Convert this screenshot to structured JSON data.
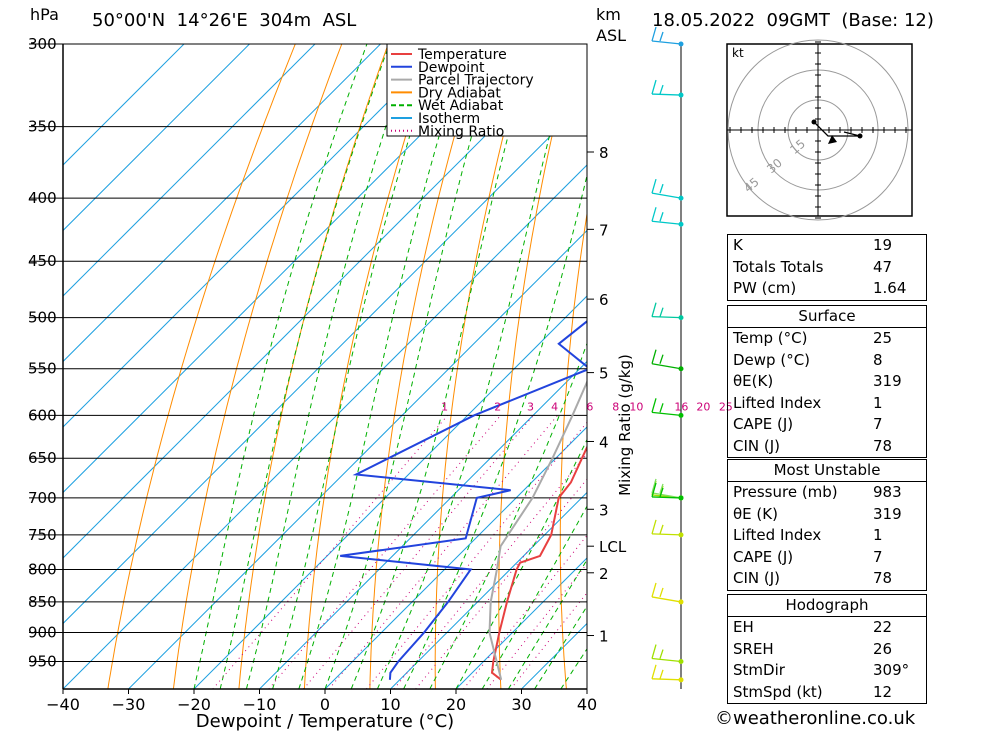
{
  "header": {
    "hpa_label": "hPa",
    "location": "50°00'N  14°26'E  304m  ASL",
    "km_label": "km",
    "asl_label": "ASL",
    "datetime": "18.05.2022  09GMT  (Base: 12)"
  },
  "chart_data": {
    "type": "line",
    "subtype": "skew-t log-p",
    "xlabel": "Dewpoint / Temperature (°C)",
    "ylabel": "hPa",
    "xlim": [
      -40,
      40
    ],
    "ylim": [
      300,
      1000
    ],
    "x_ticks": [
      "−40",
      "−30",
      "−20",
      "−10",
      "0",
      "10",
      "20",
      "30",
      "40"
    ],
    "pressure_ticks": [
      300,
      350,
      400,
      450,
      500,
      550,
      600,
      650,
      700,
      750,
      800,
      850,
      900,
      950
    ],
    "height_ticks": [
      {
        "label": "8",
        "p": 367
      },
      {
        "label": "7",
        "p": 424
      },
      {
        "label": "6",
        "p": 483
      },
      {
        "label": "5",
        "p": 554
      },
      {
        "label": "4",
        "p": 630
      },
      {
        "label": "3",
        "p": 715
      },
      {
        "label": "LCL",
        "p": 766
      },
      {
        "label": "2",
        "p": 805
      },
      {
        "label": "1",
        "p": 905
      }
    ],
    "mixing_ratio_axis_label": "Mixing Ratio (g/kg)",
    "mixing_ratio_labels": [
      "1",
      "2",
      "3",
      "4",
      "6",
      "8",
      "10",
      "16",
      "20",
      "25"
    ],
    "legend": {
      "position": "top-right",
      "entries": [
        {
          "label": "Temperature",
          "color": "#e84040",
          "style": "solid"
        },
        {
          "label": "Dewpoint",
          "color": "#2244dd",
          "style": "solid"
        },
        {
          "label": "Parcel Trajectory",
          "color": "#aaaaaa",
          "style": "solid"
        },
        {
          "label": "Dry Adiabat",
          "color": "#ff8c00",
          "style": "solid"
        },
        {
          "label": "Wet Adiabat",
          "color": "#00b000",
          "style": "dashed"
        },
        {
          "label": "Isotherm",
          "color": "#1ea0e0",
          "style": "solid"
        },
        {
          "label": "Mixing Ratio",
          "color": "#cc0077",
          "style": "dotted"
        }
      ]
    },
    "series": [
      {
        "name": "Temperature",
        "points": [
          {
            "p": 983,
            "t": 25.5
          },
          {
            "p": 970,
            "t": 23
          },
          {
            "p": 950,
            "t": 21.5
          },
          {
            "p": 900,
            "t": 18
          },
          {
            "p": 850,
            "t": 14.5
          },
          {
            "p": 800,
            "t": 11
          },
          {
            "p": 790,
            "t": 10.5
          },
          {
            "p": 780,
            "t": 12.5
          },
          {
            "p": 750,
            "t": 11
          },
          {
            "p": 700,
            "t": 6.5
          },
          {
            "p": 680,
            "t": 6
          },
          {
            "p": 650,
            "t": 4
          },
          {
            "p": 600,
            "t": 0.5
          },
          {
            "p": 550,
            "t": -3.5
          },
          {
            "p": 500,
            "t": -8
          },
          {
            "p": 450,
            "t": -14
          },
          {
            "p": 400,
            "t": -21
          },
          {
            "p": 375,
            "t": -25
          },
          {
            "p": 350,
            "t": -29
          },
          {
            "p": 300,
            "t": -37
          }
        ]
      },
      {
        "name": "Dewpoint",
        "points": [
          {
            "p": 983,
            "t": 8.5
          },
          {
            "p": 970,
            "t": 7.5
          },
          {
            "p": 950,
            "t": 7
          },
          {
            "p": 900,
            "t": 6.5
          },
          {
            "p": 850,
            "t": 5.5
          },
          {
            "p": 800,
            "t": 4
          },
          {
            "p": 780,
            "t": -18
          },
          {
            "p": 755,
            "t": -1.5
          },
          {
            "p": 700,
            "t": -6
          },
          {
            "p": 690,
            "t": -2
          },
          {
            "p": 670,
            "t": -28
          },
          {
            "p": 600,
            "t": -19
          },
          {
            "p": 550,
            "t": -8.5
          },
          {
            "p": 525,
            "t": -17
          },
          {
            "p": 500,
            "t": -16
          },
          {
            "p": 450,
            "t": -23
          },
          {
            "p": 425,
            "t": -20
          },
          {
            "p": 400,
            "t": -24
          },
          {
            "p": 350,
            "t": -31
          },
          {
            "p": 300,
            "t": -43
          }
        ]
      },
      {
        "name": "Parcel Trajectory",
        "points": [
          {
            "p": 983,
            "t": 25.5
          },
          {
            "p": 900,
            "t": 16.5
          },
          {
            "p": 850,
            "t": 12
          },
          {
            "p": 800,
            "t": 8
          },
          {
            "p": 766,
            "t": 5
          },
          {
            "p": 700,
            "t": 2.5
          },
          {
            "p": 650,
            "t": -0.5
          },
          {
            "p": 600,
            "t": -4
          },
          {
            "p": 550,
            "t": -8
          },
          {
            "p": 500,
            "t": -13
          },
          {
            "p": 450,
            "t": -18.5
          },
          {
            "p": 400,
            "t": -25
          },
          {
            "p": 350,
            "t": -32.5
          },
          {
            "p": 300,
            "t": -41
          }
        ]
      }
    ],
    "wind_barbs": [
      {
        "p": 983,
        "color": "#e0e000"
      },
      {
        "p": 950,
        "color": "#a0e000"
      },
      {
        "p": 850,
        "color": "#e0e000"
      },
      {
        "p": 750,
        "color": "#c0e000"
      },
      {
        "p": 700,
        "color": "#a0e000"
      },
      {
        "p": 700,
        "color": "#80e060"
      },
      {
        "p": 700,
        "color": "#00c000"
      },
      {
        "p": 600,
        "color": "#00c000"
      },
      {
        "p": 550,
        "color": "#00b000"
      },
      {
        "p": 500,
        "color": "#00c8a0"
      },
      {
        "p": 420,
        "color": "#00c8c8"
      },
      {
        "p": 400,
        "color": "#00c8c8"
      },
      {
        "p": 330,
        "color": "#00c8c8"
      },
      {
        "p": 300,
        "color": "#1ea0e0"
      }
    ]
  },
  "hodograph": {
    "unit_label": "kt",
    "ring_labels": [
      "15",
      "30",
      "45"
    ]
  },
  "indices": [
    {
      "key": "K",
      "value": "19"
    },
    {
      "key": "Totals Totals",
      "value": "47"
    },
    {
      "key": "PW (cm)",
      "value": "1.64"
    }
  ],
  "surface": {
    "title": "Surface",
    "rows": [
      {
        "key": "Temp (°C)",
        "value": "25"
      },
      {
        "key": "Dewp (°C)",
        "value": "8"
      },
      {
        "key": "θE(K)",
        "value": "319"
      },
      {
        "key": "Lifted Index",
        "value": "1"
      },
      {
        "key": "CAPE (J)",
        "value": "7"
      },
      {
        "key": "CIN (J)",
        "value": "78"
      }
    ]
  },
  "most_unstable": {
    "title": "Most Unstable",
    "rows": [
      {
        "key": "Pressure (mb)",
        "value": "983"
      },
      {
        "key": "θE (K)",
        "value": "319"
      },
      {
        "key": "Lifted Index",
        "value": "1"
      },
      {
        "key": "CAPE (J)",
        "value": "7"
      },
      {
        "key": "CIN (J)",
        "value": "78"
      }
    ]
  },
  "hodograph_table": {
    "title": "Hodograph",
    "rows": [
      {
        "key": "EH",
        "value": "22"
      },
      {
        "key": "SREH",
        "value": "26"
      },
      {
        "key": "StmDir",
        "value": "309°"
      },
      {
        "key": "StmSpd (kt)",
        "value": "12"
      }
    ]
  },
  "footer": {
    "copyright_symbol": "©",
    "site": "weatheronline.co.uk"
  }
}
